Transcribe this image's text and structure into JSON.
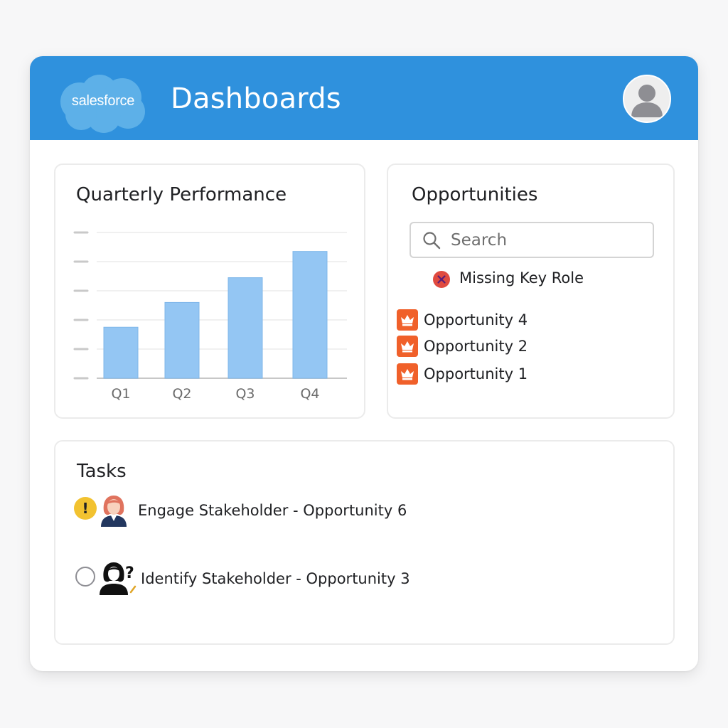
{
  "header": {
    "logo_text": "salesforce",
    "title": "Dashboards",
    "colors": {
      "header_bg": "#2f91dd",
      "logo_cloud": "#5db0e8"
    }
  },
  "chart_card": {
    "title": "Quarterly Performance"
  },
  "chart_data": {
    "type": "bar",
    "title": "Quarterly Performance",
    "categories": [
      "Q1",
      "Q2",
      "Q3",
      "Q4"
    ],
    "values": [
      35,
      52,
      69,
      87
    ],
    "ylim": [
      0,
      100
    ],
    "y_gridlines": 5,
    "y_tick_labels_shown": false,
    "grid": true,
    "bar_color": "#94c6f3"
  },
  "opportunities": {
    "title": "Opportunities",
    "search_placeholder": "Search",
    "filter_label": "Missing Key Role",
    "filter_icon": "x-circle-icon",
    "items": [
      {
        "label": "Opportunity 4",
        "icon": "crown-icon"
      },
      {
        "label": "Opportunity 2",
        "icon": "crown-icon"
      },
      {
        "label": "Opportunity 1",
        "icon": "crown-icon"
      }
    ],
    "colors": {
      "item_icon_bg": "#f0602a",
      "filter_icon": "#e04a3f"
    }
  },
  "tasks": {
    "title": "Tasks",
    "items": [
      {
        "label": "Engage Stakeholder - Opportunity 6",
        "status_icon": "warning-icon",
        "status_symbol": "!",
        "avatar_icon": "woman-avatar-icon"
      },
      {
        "label": "Identify Stakeholder - Opportunity 3",
        "status_icon": "open-circle-icon",
        "avatar_icon": "unknown-person-icon",
        "avatar_symbol": "?"
      }
    ],
    "colors": {
      "warning": "#f2c230"
    }
  }
}
